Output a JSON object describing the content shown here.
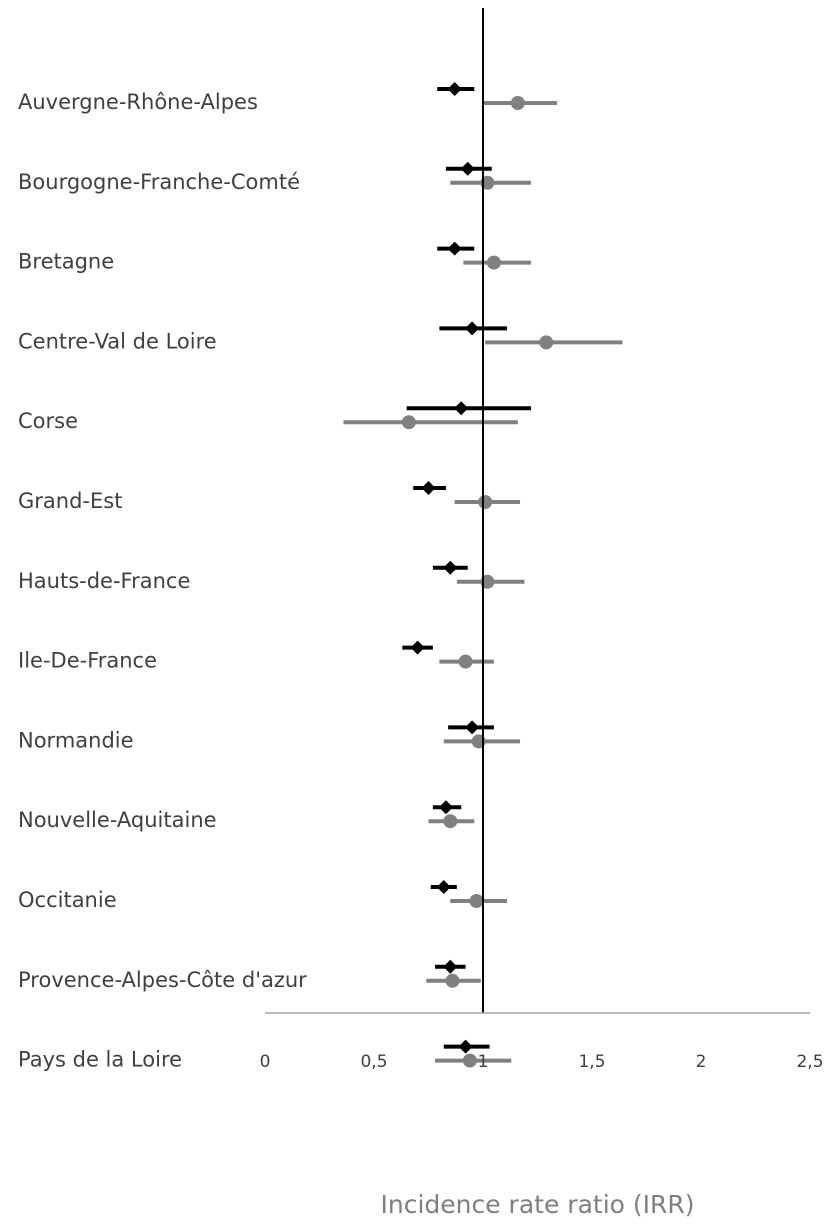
{
  "chart_data": {
    "type": "scatter",
    "subtype": "forest-plot",
    "title": "",
    "xlabel": "Incidence rate ratio (IRR)",
    "ylabel": "",
    "xlim": [
      0,
      2.5
    ],
    "xticks": [
      0,
      0.5,
      1,
      1.5,
      2,
      2.5
    ],
    "xtick_labels": [
      "0",
      "0,5",
      "1",
      "1,5",
      "2",
      "2,5"
    ],
    "reference_line": 1,
    "grid": false,
    "legend": "none",
    "categories": [
      "Auvergne-Rhône-Alpes",
      "Bourgogne-Franche-Comté",
      "Bretagne",
      "Centre-Val de Loire",
      "Corse",
      "Grand-Est",
      "Hauts-de-France",
      "Ile-De-France",
      "Normandie",
      "Nouvelle-Aquitaine",
      "Occitanie",
      "Provence-Alpes-Côte d'azur",
      "Pays de la Loire"
    ],
    "series": [
      {
        "marker": "diamond",
        "color": "#000000",
        "estimate": [
          0.87,
          0.93,
          0.87,
          0.95,
          0.9,
          0.75,
          0.85,
          0.7,
          0.95,
          0.83,
          0.82,
          0.85,
          0.92
        ],
        "ci_low": [
          0.79,
          0.83,
          0.79,
          0.8,
          0.65,
          0.68,
          0.77,
          0.63,
          0.84,
          0.77,
          0.76,
          0.78,
          0.82
        ],
        "ci_high": [
          0.96,
          1.04,
          0.96,
          1.11,
          1.22,
          0.83,
          0.93,
          0.77,
          1.05,
          0.9,
          0.88,
          0.92,
          1.03
        ]
      },
      {
        "marker": "circle",
        "color": "#808080",
        "estimate": [
          1.16,
          1.02,
          1.05,
          1.29,
          0.66,
          1.01,
          1.02,
          0.92,
          0.98,
          0.85,
          0.97,
          0.86,
          0.94
        ],
        "ci_low": [
          1.0,
          0.85,
          0.91,
          1.01,
          0.36,
          0.87,
          0.88,
          0.8,
          0.82,
          0.75,
          0.85,
          0.74,
          0.78
        ],
        "ci_high": [
          1.34,
          1.22,
          1.22,
          1.64,
          1.16,
          1.17,
          1.19,
          1.05,
          1.17,
          0.96,
          1.11,
          0.99,
          1.13
        ]
      }
    ]
  }
}
